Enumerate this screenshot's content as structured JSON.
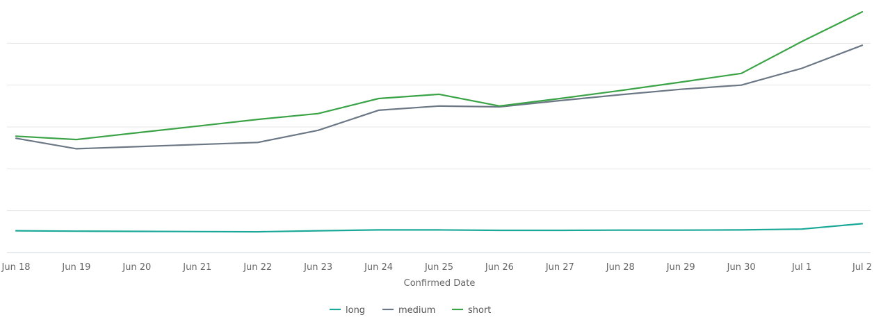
{
  "chart_data": {
    "type": "line",
    "title": "",
    "xlabel": "Confirmed Date",
    "ylabel": "",
    "grid": true,
    "legend_position": "bottom",
    "categories": [
      "Jun 18",
      "Jun 19",
      "Jun 20",
      "Jun 21",
      "Jun 22",
      "Jun 23",
      "Jun 24",
      "Jun 25",
      "Jun 26",
      "Jun 27",
      "Jun 28",
      "Jun 29",
      "Jun 30",
      "Jul 1",
      "Jul 2"
    ],
    "ylim": [
      0,
      6
    ],
    "y_gridlines": [
      1,
      2,
      3,
      4,
      5
    ],
    "series": [
      {
        "name": "long",
        "color": "#1aa898",
        "values": [
          0.52,
          0.51,
          0.505,
          0.5,
          0.495,
          0.52,
          0.54,
          0.54,
          0.53,
          0.53,
          0.535,
          0.535,
          0.54,
          0.56,
          0.69
        ]
      },
      {
        "name": "medium",
        "color": "#6b7785",
        "values": [
          2.73,
          2.48,
          2.53,
          2.58,
          2.63,
          2.92,
          3.4,
          3.5,
          3.48,
          3.63,
          3.77,
          3.9,
          4.0,
          4.4,
          4.95
        ]
      },
      {
        "name": "short",
        "color": "#3aa346",
        "values": [
          2.78,
          2.7,
          2.86,
          3.02,
          3.18,
          3.32,
          3.68,
          3.78,
          3.5,
          3.68,
          3.87,
          4.07,
          4.28,
          5.04,
          5.75
        ]
      }
    ]
  }
}
